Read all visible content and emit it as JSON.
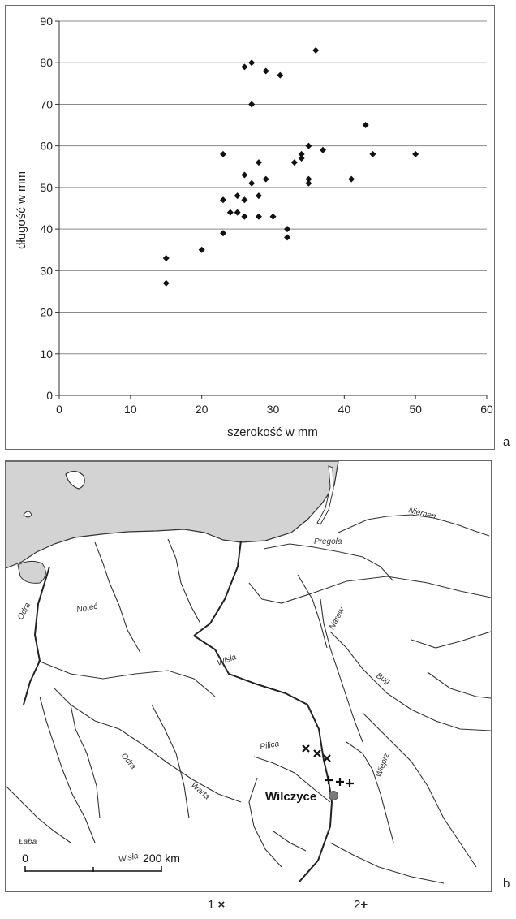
{
  "panel_letters": {
    "a": "a",
    "b": "b"
  },
  "chart_data": {
    "type": "scatter",
    "xlabel": "szerokość w mm",
    "ylabel": "długość w mm",
    "xlim": [
      0,
      60
    ],
    "ylim": [
      0,
      90
    ],
    "xticks": [
      0,
      10,
      20,
      30,
      40,
      50,
      60
    ],
    "yticks": [
      0,
      10,
      20,
      30,
      40,
      50,
      60,
      70,
      80,
      90
    ],
    "grid": "horizontal",
    "points": [
      {
        "x": 15,
        "y": 33
      },
      {
        "x": 15,
        "y": 27
      },
      {
        "x": 20,
        "y": 35
      },
      {
        "x": 23,
        "y": 58
      },
      {
        "x": 23,
        "y": 47
      },
      {
        "x": 23,
        "y": 39
      },
      {
        "x": 24,
        "y": 44
      },
      {
        "x": 25,
        "y": 48
      },
      {
        "x": 25,
        "y": 44
      },
      {
        "x": 26,
        "y": 79
      },
      {
        "x": 26,
        "y": 53
      },
      {
        "x": 26,
        "y": 47
      },
      {
        "x": 26,
        "y": 43
      },
      {
        "x": 27,
        "y": 80
      },
      {
        "x": 27,
        "y": 70
      },
      {
        "x": 27,
        "y": 51
      },
      {
        "x": 28,
        "y": 56
      },
      {
        "x": 28,
        "y": 48
      },
      {
        "x": 28,
        "y": 43
      },
      {
        "x": 29,
        "y": 78
      },
      {
        "x": 29,
        "y": 52
      },
      {
        "x": 30,
        "y": 43
      },
      {
        "x": 31,
        "y": 77
      },
      {
        "x": 32,
        "y": 40
      },
      {
        "x": 32,
        "y": 38
      },
      {
        "x": 33,
        "y": 56
      },
      {
        "x": 34,
        "y": 58
      },
      {
        "x": 34,
        "y": 57
      },
      {
        "x": 35,
        "y": 60
      },
      {
        "x": 35,
        "y": 52
      },
      {
        "x": 35,
        "y": 51
      },
      {
        "x": 36,
        "y": 83
      },
      {
        "x": 37,
        "y": 59
      },
      {
        "x": 41,
        "y": 52
      },
      {
        "x": 43,
        "y": 65
      },
      {
        "x": 44,
        "y": 58
      },
      {
        "x": 50,
        "y": 58
      }
    ]
  },
  "map": {
    "labels": {
      "niemen": "Niemen",
      "pregola": "Pregola",
      "odra_n": "Odra",
      "notec": "Noteć",
      "wisla_n": "Wisła",
      "narew": "Narew",
      "bug": "Bug",
      "pilica": "Pilica",
      "wieprz": "Wieprz",
      "odra_s": "Odra",
      "warta": "Warta",
      "laba": "Łaba",
      "wisla_s": "Wisła",
      "site": "Wilczyce"
    },
    "scale": {
      "start": "0",
      "end": "200 km"
    },
    "legend": {
      "item1": "1",
      "item2": "2"
    }
  }
}
